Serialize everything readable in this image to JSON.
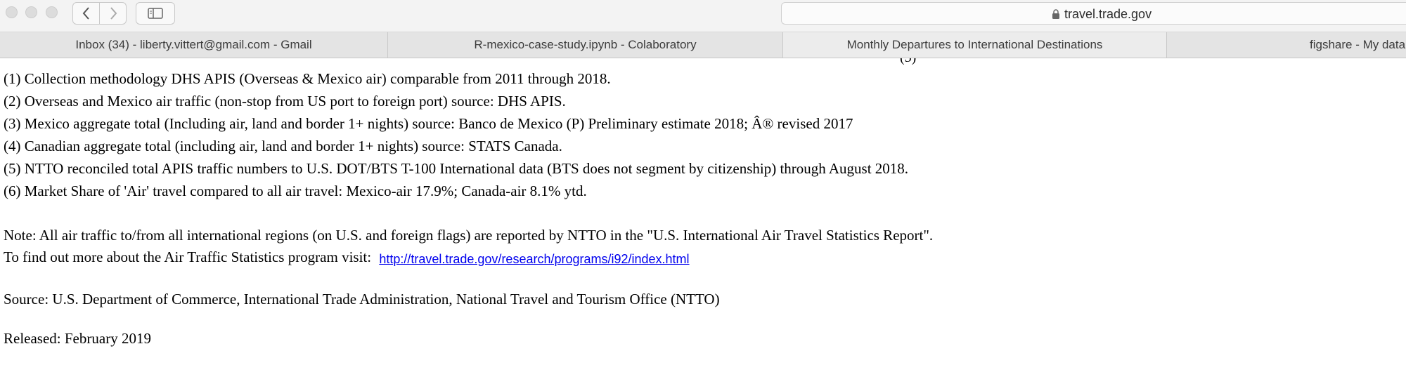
{
  "browser": {
    "url": "travel.trade.gov",
    "tabs": [
      {
        "label": "Inbox (34) - liberty.vittert@gmail.com - Gmail"
      },
      {
        "label": "R-mexico-case-study.ipynb - Colaboratory"
      },
      {
        "label": "Monthly Departures to International Destinations"
      },
      {
        "label": "figshare - My data"
      }
    ]
  },
  "content": {
    "cut_marker": "(5)",
    "notes": [
      "(1) Collection methodology DHS APIS (Overseas & Mexico air) comparable from 2011 through 2018.",
      "(2) Overseas and Mexico air traffic (non-stop from US port to foreign port) source: DHS APIS.",
      "(3) Mexico aggregate total (Including air, land and border 1+ nights) source: Banco de Mexico (P) Preliminary estimate 2018; Â® revised 2017",
      "(4) Canadian aggregate total (including air, land and border 1+ nights) source: STATS Canada.",
      "(5) NTTO reconciled total APIS traffic numbers to U.S. DOT/BTS T-100 International data (BTS does not segment by citizenship) through August 2018.",
      "(6) Market Share of 'Air' travel compared to all air travel: Mexico-air 17.9%; Canada-air 8.1% ytd."
    ],
    "note_line": "Note: All air traffic to/from all international regions (on U.S. and foreign flags) are reported by NTTO in the \"U.S. International Air Travel Statistics Report\".",
    "more_info_text": "To find out more about the Air Traffic Statistics program visit:",
    "more_info_link": "http://travel.trade.gov/research/programs/i92/index.html",
    "source_line": "Source: U.S. Department of Commerce, International Trade Administration, National Travel and Tourism Office (NTTO)",
    "released_line": "Released: February 2019"
  }
}
